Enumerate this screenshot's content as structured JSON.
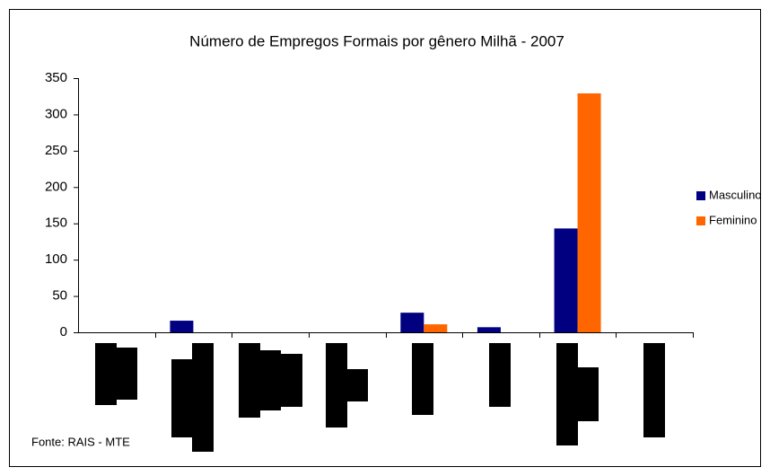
{
  "chart_data": {
    "type": "bar",
    "title": "Número de Empregos Formais por gênero Milhã - 2007",
    "categories": [
      null,
      null,
      null,
      null,
      null,
      null,
      null,
      null
    ],
    "series": [
      {
        "name": "Masculino",
        "color": "#000080",
        "values": [
          0,
          16,
          0,
          0,
          27,
          7,
          143,
          0
        ]
      },
      {
        "name": "Feminino",
        "color": "#ff6600",
        "values": [
          0,
          0,
          0,
          0,
          11,
          0,
          329,
          0
        ]
      }
    ],
    "ylim": [
      0,
      350
    ],
    "yticks": [
      0,
      50,
      100,
      150,
      200,
      250,
      300,
      350
    ],
    "grid": false,
    "legend": "right",
    "source": "Fonte: RAIS - MTE"
  }
}
